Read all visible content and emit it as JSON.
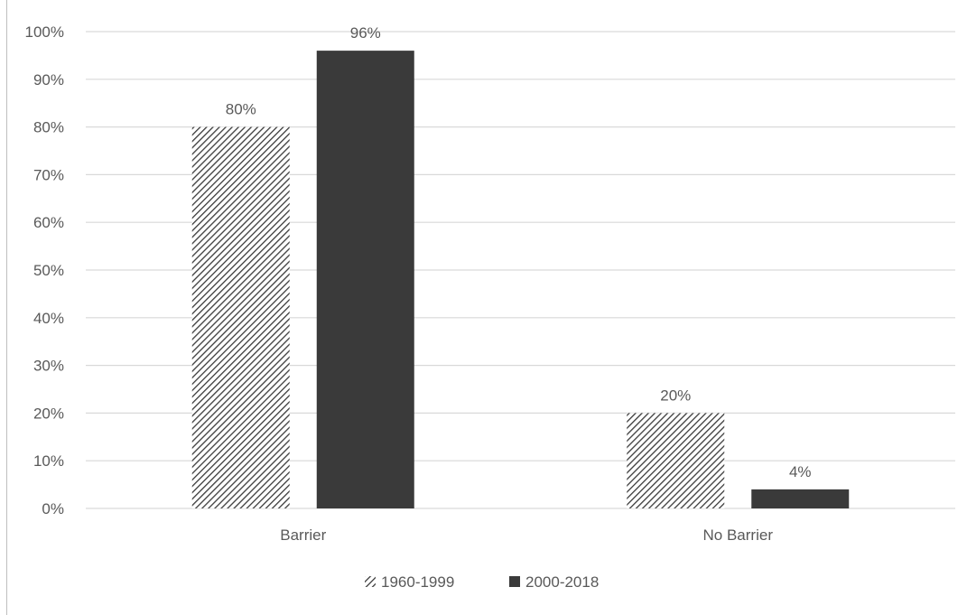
{
  "chart_data": {
    "type": "bar",
    "title": "",
    "xlabel": "",
    "ylabel": "",
    "ylim": [
      0,
      100
    ],
    "ytick_step": 10,
    "ytick_format": "percent",
    "grid": true,
    "legend_position": "bottom",
    "categories": [
      "Barrier",
      "No Barrier"
    ],
    "series": [
      {
        "name": "1960-1999",
        "values": [
          80,
          20
        ],
        "data_labels": [
          "80%",
          "20%"
        ],
        "fill": "hatched",
        "color": "#3a3a3a"
      },
      {
        "name": "2000-2018",
        "values": [
          96,
          4
        ],
        "data_labels": [
          "96%",
          "4%"
        ],
        "fill": "solid",
        "color": "#3a3a3a"
      }
    ],
    "colors": {
      "grid": "#d9d9d9",
      "axis": "#d9d9d9",
      "text": "#595959"
    }
  }
}
